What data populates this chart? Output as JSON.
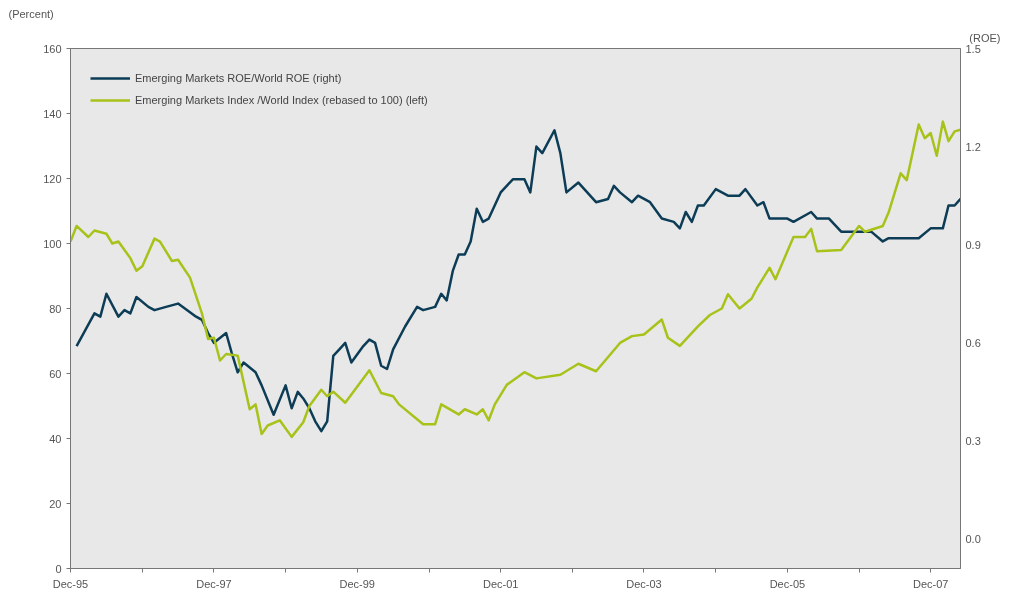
{
  "chart_data": {
    "type": "line",
    "ylabel": "(Percent)",
    "y2label": "(ROE)",
    "xlim": [
      "1995-12",
      "2008-05"
    ],
    "xticks": [
      {
        "value": "1995-12",
        "label": "Dec-95"
      },
      {
        "value": "1996-12",
        "label": null
      },
      {
        "value": "1997-12",
        "label": "Dec-97"
      },
      {
        "value": "1998-12",
        "label": null
      },
      {
        "value": "1999-12",
        "label": "Dec-99"
      },
      {
        "value": "2000-12",
        "label": null
      },
      {
        "value": "2001-12",
        "label": "Dec-01"
      },
      {
        "value": "2002-12",
        "label": null
      },
      {
        "value": "2003-12",
        "label": "Dec-03"
      },
      {
        "value": "2004-12",
        "label": null
      },
      {
        "value": "2005-12",
        "label": "Dec-05"
      },
      {
        "value": "2006-12",
        "label": null
      },
      {
        "value": "2007-12",
        "label": "Dec-07"
      }
    ],
    "ylim": [
      0,
      160
    ],
    "yticks": [
      0,
      20,
      40,
      60,
      80,
      100,
      120,
      140,
      160
    ],
    "y2lim": [
      -0.09,
      1.5
    ],
    "y2ticks": [
      {
        "value": 0,
        "label": "0.0"
      },
      0.3,
      0.6,
      0.9,
      1.2,
      1.5
    ],
    "legend": "top left",
    "grid": false,
    "marker": "none",
    "line_style": "solid",
    "series": [
      {
        "name": "Emerging Markets ROE/World ROE (right)",
        "color": "#0d3d56",
        "axis": "y2",
        "x": [
          "1996-01",
          "1996-04",
          "1996-05",
          "1996-06",
          "1996-08",
          "1996-09",
          "1996-10",
          "1996-11",
          "1997-01",
          "1997-02",
          "1997-04",
          "1997-06",
          "1997-09",
          "1997-10",
          "1997-11",
          "1997-12",
          "1998-02",
          "1998-03",
          "1998-04",
          "1998-05",
          "1998-07",
          "1998-08",
          "1998-10",
          "1998-12",
          "1999-01",
          "1999-02",
          "1999-03",
          "1999-04",
          "1999-05",
          "1999-06",
          "1999-07",
          "1999-08",
          "1999-09",
          "1999-10",
          "1999-11",
          "2000-01",
          "2000-02",
          "2000-03",
          "2000-04",
          "2000-05",
          "2000-06",
          "2000-08",
          "2000-10",
          "2000-11",
          "2001-01",
          "2001-02",
          "2001-03",
          "2001-04",
          "2001-05",
          "2001-06",
          "2001-07",
          "2001-08",
          "2001-09",
          "2001-10",
          "2001-12",
          "2002-02",
          "2002-04",
          "2002-05",
          "2002-06",
          "2002-07",
          "2002-09",
          "2002-10",
          "2002-11",
          "2003-01",
          "2003-04",
          "2003-06",
          "2003-07",
          "2003-08",
          "2003-10",
          "2003-11",
          "2004-01",
          "2004-03",
          "2004-05",
          "2004-06",
          "2004-07",
          "2004-08",
          "2004-09",
          "2004-10",
          "2004-12",
          "2005-02",
          "2005-04",
          "2005-05",
          "2005-07",
          "2005-08",
          "2005-09",
          "2005-12",
          "2006-01",
          "2006-04",
          "2006-05",
          "2006-07",
          "2006-09",
          "2007-02",
          "2007-04",
          "2007-05",
          "2007-07",
          "2007-10",
          "2007-12",
          "2008-02",
          "2008-03",
          "2008-04",
          "2008-05"
        ],
        "values": [
          0.59,
          0.69,
          0.68,
          0.75,
          0.68,
          0.7,
          0.69,
          0.74,
          0.71,
          0.7,
          0.71,
          0.72,
          0.68,
          0.67,
          0.63,
          0.6,
          0.63,
          0.57,
          0.51,
          0.54,
          0.51,
          0.47,
          0.38,
          0.47,
          0.4,
          0.45,
          0.43,
          0.4,
          0.36,
          0.33,
          0.36,
          0.56,
          0.58,
          0.6,
          0.54,
          0.59,
          0.61,
          0.6,
          0.53,
          0.52,
          0.58,
          0.65,
          0.71,
          0.7,
          0.71,
          0.75,
          0.73,
          0.82,
          0.87,
          0.87,
          0.91,
          1.01,
          0.97,
          0.98,
          1.06,
          1.1,
          1.1,
          1.06,
          1.2,
          1.18,
          1.25,
          1.18,
          1.06,
          1.09,
          1.03,
          1.04,
          1.08,
          1.06,
          1.03,
          1.05,
          1.03,
          0.98,
          0.97,
          0.95,
          1.0,
          0.97,
          1.02,
          1.02,
          1.07,
          1.05,
          1.05,
          1.07,
          1.02,
          1.03,
          0.98,
          0.98,
          0.97,
          1.0,
          0.98,
          0.98,
          0.94,
          0.94,
          0.91,
          0.92,
          0.92,
          0.92,
          0.95,
          0.95,
          1.02,
          1.02,
          1.04
        ]
      },
      {
        "name": "Emerging Markets Index /World Index (rebased to 100) (left)",
        "color": "#a8c21a",
        "x": [
          "1995-12",
          "1996-01",
          "1996-03",
          "1996-04",
          "1996-06",
          "1996-07",
          "1996-08",
          "1996-10",
          "1996-11",
          "1996-12",
          "1997-02",
          "1997-03",
          "1997-05",
          "1997-06",
          "1997-08",
          "1997-10",
          "1997-11",
          "1997-12",
          "1998-01",
          "1998-02",
          "1998-04",
          "1998-06",
          "1998-07",
          "1998-08",
          "1998-09",
          "1998-11",
          "1999-01",
          "1999-03",
          "1999-04",
          "1999-06",
          "1999-07",
          "1999-08",
          "1999-10",
          "2000-02",
          "2000-04",
          "2000-06",
          "2000-07",
          "2000-11",
          "2001-01",
          "2001-02",
          "2001-05",
          "2001-06",
          "2001-08",
          "2001-09",
          "2001-10",
          "2001-11",
          "2002-01",
          "2002-04",
          "2002-06",
          "2002-10",
          "2003-01",
          "2003-04",
          "2003-08",
          "2003-10",
          "2003-12",
          "2004-03",
          "2004-04",
          "2004-06",
          "2004-09",
          "2004-11",
          "2005-01",
          "2005-02",
          "2005-04",
          "2005-06",
          "2005-07",
          "2005-09",
          "2005-10",
          "2006-01",
          "2006-03",
          "2006-04",
          "2006-05",
          "2006-09",
          "2006-12",
          "2007-01",
          "2007-04",
          "2007-05",
          "2007-07",
          "2007-08",
          "2007-10",
          "2007-11",
          "2007-12",
          "2008-01",
          "2008-02",
          "2008-03",
          "2008-04",
          "2008-05"
        ],
        "values": [
          100.6,
          105.4,
          102,
          104,
          103,
          100,
          100.6,
          95.5,
          91.6,
          93,
          101.5,
          100.6,
          94.6,
          95,
          89.5,
          78.4,
          70.6,
          71,
          64,
          66,
          65.5,
          49,
          50.5,
          41.4,
          44,
          45.6,
          40.5,
          45,
          50,
          55,
          53,
          54.4,
          51,
          61,
          54,
          53,
          50.5,
          44.4,
          44.4,
          50.5,
          47.4,
          49,
          47.4,
          49,
          45.6,
          50.5,
          56.5,
          60.4,
          58.5,
          59.6,
          63,
          60.7,
          69.4,
          71.5,
          72,
          76.6,
          71,
          68.5,
          74.5,
          78,
          80,
          84.4,
          80,
          83,
          86.5,
          92.5,
          89,
          102,
          102,
          104.5,
          97.6,
          98,
          105.4,
          103.6,
          105.4,
          109.6,
          121.6,
          119.5,
          136.6,
          132.4,
          134,
          127,
          137.5,
          131.5,
          134.5,
          135
        ]
      }
    ]
  }
}
